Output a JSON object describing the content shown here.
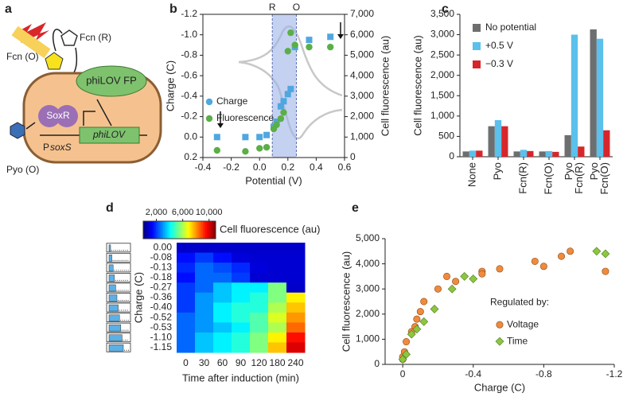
{
  "diagram": {
    "panel": "a",
    "fcn_r": "Fcn (R)",
    "fcn_o": "Fcn (O)",
    "reporter": "phiLOV FP",
    "regulator": "SoxR",
    "promoter_prefix": "P",
    "promoter": "soxS",
    "gene": "phiLOV",
    "pyo": "Pyo (O)"
  },
  "chart_data": [
    {
      "type": "scatter",
      "panel": "b",
      "xlabel": "Potential (V)",
      "ylabel": "Charge (C)",
      "y2label": "Cell fluorescence (au)",
      "xlim": [
        -0.4,
        0.6
      ],
      "xticks": [
        -0.4,
        -0.2,
        {
          "value": 0,
          "label": "0.0"
        },
        0.2,
        0.4,
        0.6
      ],
      "ylim": [
        0.2,
        -1.2
      ],
      "yticks": [
        -1.2,
        {
          "value": -1,
          "label": "-1.0"
        },
        -0.8,
        -0.6,
        -0.4,
        -0.2,
        {
          "value": 0,
          "label": "0.0"
        },
        0.2
      ],
      "y2lim": [
        0,
        7000
      ],
      "y2ticks": [
        0,
        {
          "value": 1000,
          "label": "1,000"
        },
        {
          "value": 2000,
          "label": "2,000"
        },
        {
          "value": 3000,
          "label": "3,000"
        },
        {
          "value": 4000,
          "label": "4,000"
        },
        {
          "value": 5000,
          "label": "5,000"
        },
        {
          "value": 6000,
          "label": "6,000"
        },
        {
          "value": 7000,
          "label": "7,000"
        }
      ],
      "highlight": {
        "x": [
          0.09,
          0.26
        ],
        "labels": [
          "R",
          "O"
        ],
        "color": "#9fb3e6"
      },
      "legend": "left",
      "series": [
        {
          "name": "Charge",
          "color": "#4fa7e0",
          "marker": "square",
          "x": [
            -0.3,
            -0.1,
            0,
            0.05,
            0.1,
            0.12,
            0.15,
            0.17,
            0.2,
            0.22,
            0.25,
            0.35,
            0.5
          ],
          "values": [
            0,
            0,
            0,
            -0.02,
            -0.1,
            -0.15,
            -0.3,
            -0.35,
            -0.42,
            -0.47,
            -0.88,
            -0.95,
            -0.98
          ]
        },
        {
          "name": "Fluorescence",
          "color": "#5aaf47",
          "marker": "circle",
          "axis": "y2",
          "x": [
            -0.3,
            -0.1,
            0,
            0.05,
            0.1,
            0.12,
            0.15,
            0.17,
            0.2,
            0.22,
            0.25,
            0.35,
            0.5
          ],
          "values": [
            350,
            300,
            450,
            500,
            1400,
            1600,
            1900,
            2200,
            5200,
            6100,
            5500,
            5400,
            5400
          ]
        }
      ]
    },
    {
      "type": "bar",
      "panel": "c",
      "ylabel": "Cell fluorescence (au)",
      "categories": [
        "None",
        "Pyo",
        "Fcn(R)",
        "Fcn(O)",
        [
          "Pyo",
          "Fcn(R)"
        ],
        [
          "Pyo",
          "Fcn(O)"
        ]
      ],
      "ylim": [
        0,
        3500
      ],
      "yticks": [
        0,
        500,
        {
          "value": 1000,
          "label": "1,000"
        },
        {
          "value": 1500,
          "label": "1,500"
        },
        {
          "value": 2000,
          "label": "2,000"
        },
        {
          "value": 2500,
          "label": "2,500"
        },
        {
          "value": 3000,
          "label": "3,000"
        },
        {
          "value": 3500,
          "label": "3,500"
        }
      ],
      "legend": "top-left",
      "series": [
        {
          "name": "No potential",
          "color": "#6d6e70",
          "values": [
            130,
            750,
            130,
            130,
            530,
            3130
          ]
        },
        {
          "name": "+0.5 V",
          "color": "#5bc0eb",
          "values": [
            150,
            900,
            170,
            140,
            3000,
            2900
          ]
        },
        {
          "name": "−0.3 V",
          "color": "#d7262b",
          "values": [
            150,
            750,
            140,
            120,
            250,
            650
          ]
        }
      ]
    },
    {
      "type": "heatmap",
      "panel": "d",
      "xlabel": "Time after induction (min)",
      "ylabel": "Charge (C)",
      "colorbar_label": "Cell fluorescence (au)",
      "columns": [
        0,
        30,
        60,
        90,
        120,
        180,
        240
      ],
      "rows": [
        "0.00",
        "-0.08",
        "-0.13",
        "-0.18",
        "-0.27",
        "-0.36",
        "-0.40",
        "-0.52",
        "-0.53",
        "-1.10",
        "-1.15"
      ],
      "values": [
        [
          800,
          800,
          800,
          800,
          800,
          800,
          800
        ],
        [
          1500,
          2000,
          1500,
          1000,
          900,
          900,
          900
        ],
        [
          1800,
          2500,
          2200,
          1800,
          1000,
          900,
          900
        ],
        [
          1500,
          2500,
          2500,
          2000,
          900,
          900,
          900
        ],
        [
          2000,
          2500,
          3500,
          4000,
          4000,
          5500,
          800
        ],
        [
          2000,
          3000,
          3500,
          4000,
          4500,
          5500,
          7000
        ],
        [
          2000,
          3000,
          4000,
          4500,
          4500,
          6000,
          7500
        ],
        [
          2500,
          3000,
          4000,
          4500,
          5000,
          6500,
          8000
        ],
        [
          2500,
          3000,
          3500,
          4000,
          5000,
          6000,
          8500
        ],
        [
          2500,
          3500,
          4000,
          4500,
          5500,
          7000,
          9500
        ],
        [
          2500,
          3500,
          4000,
          4500,
          5500,
          7500,
          10000
        ]
      ],
      "colormap": "jet",
      "zlim": [
        0,
        11000
      ],
      "zticks": [
        {
          "value": 2000,
          "label": "2,000"
        },
        {
          "value": 6000,
          "label": "6,000"
        },
        {
          "value": 10000,
          "label": "10,000"
        }
      ]
    },
    {
      "type": "scatter",
      "panel": "e",
      "xlabel": "Charge (C)",
      "ylabel": "Cell fluorescence (au)",
      "xlim": [
        0.1,
        -1.2
      ],
      "xticks": [
        0,
        -0.4,
        -0.8,
        -1.2
      ],
      "ylim": [
        0,
        5000
      ],
      "yticks": [
        0,
        {
          "value": 1000,
          "label": "1,000"
        },
        {
          "value": 2000,
          "label": "2,000"
        },
        {
          "value": 3000,
          "label": "3,000"
        },
        {
          "value": 4000,
          "label": "4,000"
        },
        {
          "value": 5000,
          "label": "5,000"
        }
      ],
      "legend": "right",
      "legend_title": "Regulated by:",
      "series": [
        {
          "name": "Voltage",
          "color": "#f08a3c",
          "marker": "circle",
          "x": [
            0,
            0,
            -0.01,
            -0.02,
            -0.05,
            -0.07,
            -0.08,
            -0.1,
            -0.12,
            -0.2,
            -0.25,
            -0.3,
            -0.45,
            -0.45,
            -0.55,
            -0.75,
            -0.8,
            -0.9,
            -0.95,
            -1.15
          ],
          "values": [
            200,
            300,
            500,
            900,
            1300,
            1500,
            1800,
            2100,
            2500,
            3000,
            3500,
            3300,
            3700,
            3600,
            3800,
            4100,
            3900,
            4300,
            4500,
            3700
          ]
        },
        {
          "name": "Time",
          "color": "#8dc63f",
          "marker": "diamond",
          "x": [
            0,
            -0.02,
            -0.05,
            -0.08,
            -0.12,
            -0.18,
            -0.28,
            -0.35,
            -0.4,
            -1.1,
            -1.15
          ],
          "values": [
            200,
            400,
            1200,
            1400,
            1700,
            2200,
            3000,
            3500,
            3400,
            4500,
            4400
          ]
        }
      ]
    }
  ]
}
